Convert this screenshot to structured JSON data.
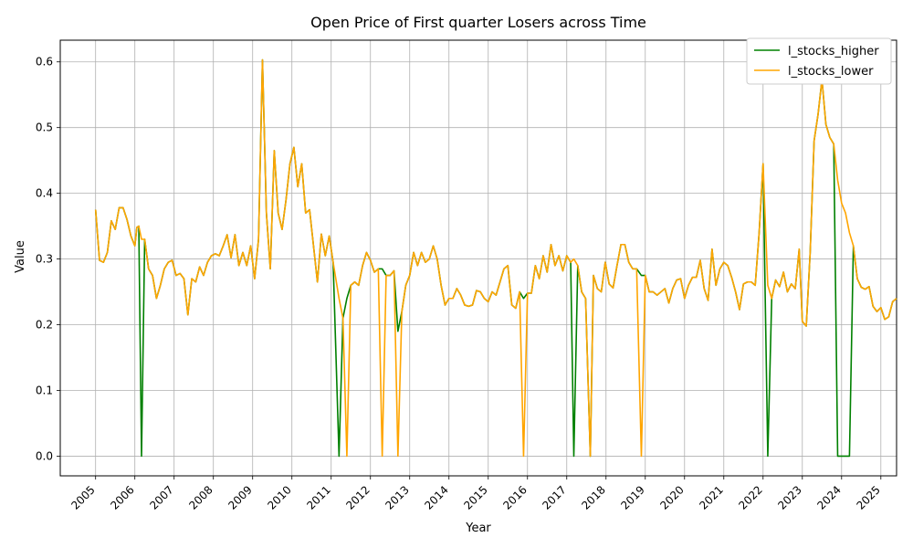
{
  "chart_data": {
    "type": "line",
    "title": "Open Price of First quarter Losers across Time",
    "xlabel": "Year",
    "ylabel": "Value",
    "xlim": [
      2004.1,
      2025.4
    ],
    "ylim": [
      -0.03,
      0.633
    ],
    "grid": true,
    "legend_position": "top-right",
    "x_ticks": [
      "2005",
      "2006",
      "2007",
      "2008",
      "2009",
      "2010",
      "2011",
      "2012",
      "2013",
      "2014",
      "2015",
      "2016",
      "2017",
      "2018",
      "2019",
      "2020",
      "2021",
      "2022",
      "2023",
      "2024",
      "2025"
    ],
    "y_ticks": [
      "0.0",
      "0.1",
      "0.2",
      "0.3",
      "0.4",
      "0.5",
      "0.6"
    ],
    "series": [
      {
        "name": "l_stocks_higher",
        "color": "#008000",
        "points": [
          [
            2005.0,
            0.375
          ],
          [
            2005.1,
            0.298
          ],
          [
            2005.2,
            0.295
          ],
          [
            2005.3,
            0.31
          ],
          [
            2005.4,
            0.358
          ],
          [
            2005.5,
            0.345
          ],
          [
            2005.6,
            0.378
          ],
          [
            2005.7,
            0.378
          ],
          [
            2005.8,
            0.36
          ],
          [
            2005.9,
            0.335
          ],
          [
            2006.0,
            0.32
          ],
          [
            2006.05,
            0.348
          ],
          [
            2006.1,
            0.35
          ],
          [
            2006.17,
            0.0
          ],
          [
            2006.25,
            0.33
          ],
          [
            2006.35,
            0.285
          ],
          [
            2006.45,
            0.275
          ],
          [
            2006.55,
            0.24
          ],
          [
            2006.65,
            0.26
          ],
          [
            2006.75,
            0.285
          ],
          [
            2006.85,
            0.295
          ],
          [
            2006.95,
            0.298
          ],
          [
            2007.05,
            0.275
          ],
          [
            2007.15,
            0.278
          ],
          [
            2007.25,
            0.27
          ],
          [
            2007.35,
            0.215
          ],
          [
            2007.45,
            0.27
          ],
          [
            2007.55,
            0.265
          ],
          [
            2007.65,
            0.288
          ],
          [
            2007.75,
            0.275
          ],
          [
            2007.85,
            0.295
          ],
          [
            2007.95,
            0.305
          ],
          [
            2008.05,
            0.308
          ],
          [
            2008.15,
            0.305
          ],
          [
            2008.25,
            0.32
          ],
          [
            2008.35,
            0.337
          ],
          [
            2008.45,
            0.302
          ],
          [
            2008.55,
            0.337
          ],
          [
            2008.65,
            0.29
          ],
          [
            2008.75,
            0.31
          ],
          [
            2008.85,
            0.29
          ],
          [
            2008.95,
            0.32
          ],
          [
            2009.05,
            0.27
          ],
          [
            2009.15,
            0.33
          ],
          [
            2009.25,
            0.603
          ],
          [
            2009.35,
            0.37
          ],
          [
            2009.45,
            0.285
          ],
          [
            2009.55,
            0.465
          ],
          [
            2009.65,
            0.37
          ],
          [
            2009.75,
            0.345
          ],
          [
            2009.85,
            0.39
          ],
          [
            2009.95,
            0.445
          ],
          [
            2010.05,
            0.47
          ],
          [
            2010.15,
            0.41
          ],
          [
            2010.25,
            0.445
          ],
          [
            2010.35,
            0.37
          ],
          [
            2010.45,
            0.375
          ],
          [
            2010.55,
            0.32
          ],
          [
            2010.65,
            0.265
          ],
          [
            2010.75,
            0.338
          ],
          [
            2010.85,
            0.305
          ],
          [
            2010.95,
            0.335
          ],
          [
            2011.05,
            0.295
          ],
          [
            2011.2,
            0.0
          ],
          [
            2011.3,
            0.21
          ],
          [
            2011.4,
            0.24
          ],
          [
            2011.5,
            0.26
          ],
          [
            2011.6,
            0.265
          ],
          [
            2011.7,
            0.26
          ],
          [
            2011.8,
            0.29
          ],
          [
            2011.9,
            0.31
          ],
          [
            2012.0,
            0.298
          ],
          [
            2012.1,
            0.28
          ],
          [
            2012.2,
            0.285
          ],
          [
            2012.3,
            0.285
          ],
          [
            2012.4,
            0.275
          ],
          [
            2012.5,
            0.275
          ],
          [
            2012.6,
            0.282
          ],
          [
            2012.7,
            0.19
          ],
          [
            2012.8,
            0.22
          ],
          [
            2012.9,
            0.26
          ],
          [
            2013.0,
            0.275
          ],
          [
            2013.1,
            0.31
          ],
          [
            2013.2,
            0.29
          ],
          [
            2013.3,
            0.31
          ],
          [
            2013.4,
            0.295
          ],
          [
            2013.5,
            0.3
          ],
          [
            2013.6,
            0.32
          ],
          [
            2013.7,
            0.3
          ],
          [
            2013.8,
            0.26
          ],
          [
            2013.9,
            0.23
          ],
          [
            2014.0,
            0.24
          ],
          [
            2014.1,
            0.24
          ],
          [
            2014.2,
            0.255
          ],
          [
            2014.3,
            0.245
          ],
          [
            2014.4,
            0.23
          ],
          [
            2014.5,
            0.228
          ],
          [
            2014.6,
            0.23
          ],
          [
            2014.7,
            0.252
          ],
          [
            2014.8,
            0.25
          ],
          [
            2014.9,
            0.24
          ],
          [
            2015.0,
            0.235
          ],
          [
            2015.1,
            0.25
          ],
          [
            2015.2,
            0.245
          ],
          [
            2015.3,
            0.265
          ],
          [
            2015.4,
            0.285
          ],
          [
            2015.5,
            0.29
          ],
          [
            2015.6,
            0.23
          ],
          [
            2015.7,
            0.225
          ],
          [
            2015.8,
            0.25
          ],
          [
            2015.9,
            0.24
          ],
          [
            2016.0,
            0.248
          ],
          [
            2016.1,
            0.248
          ],
          [
            2016.2,
            0.29
          ],
          [
            2016.3,
            0.27
          ],
          [
            2016.4,
            0.305
          ],
          [
            2016.5,
            0.28
          ],
          [
            2016.6,
            0.322
          ],
          [
            2016.7,
            0.29
          ],
          [
            2016.8,
            0.305
          ],
          [
            2016.9,
            0.282
          ],
          [
            2017.0,
            0.305
          ],
          [
            2017.1,
            0.295
          ],
          [
            2017.18,
            0.0
          ],
          [
            2017.28,
            0.29
          ],
          [
            2017.38,
            0.25
          ],
          [
            2017.48,
            0.24
          ],
          [
            2017.6,
            0.0
          ],
          [
            2017.68,
            0.275
          ],
          [
            2017.78,
            0.255
          ],
          [
            2017.88,
            0.25
          ],
          [
            2017.98,
            0.295
          ],
          [
            2018.08,
            0.262
          ],
          [
            2018.18,
            0.256
          ],
          [
            2018.28,
            0.29
          ],
          [
            2018.38,
            0.322
          ],
          [
            2018.48,
            0.322
          ],
          [
            2018.58,
            0.295
          ],
          [
            2018.68,
            0.285
          ],
          [
            2018.78,
            0.285
          ],
          [
            2018.9,
            0.275
          ],
          [
            2019.0,
            0.275
          ],
          [
            2019.1,
            0.25
          ],
          [
            2019.2,
            0.25
          ],
          [
            2019.3,
            0.245
          ],
          [
            2019.4,
            0.25
          ],
          [
            2019.5,
            0.255
          ],
          [
            2019.6,
            0.233
          ],
          [
            2019.7,
            0.255
          ],
          [
            2019.8,
            0.268
          ],
          [
            2019.9,
            0.27
          ],
          [
            2020.0,
            0.24
          ],
          [
            2020.1,
            0.26
          ],
          [
            2020.2,
            0.272
          ],
          [
            2020.3,
            0.272
          ],
          [
            2020.4,
            0.298
          ],
          [
            2020.5,
            0.255
          ],
          [
            2020.6,
            0.237
          ],
          [
            2020.7,
            0.315
          ],
          [
            2020.8,
            0.26
          ],
          [
            2020.9,
            0.285
          ],
          [
            2021.0,
            0.295
          ],
          [
            2021.1,
            0.29
          ],
          [
            2021.2,
            0.272
          ],
          [
            2021.3,
            0.25
          ],
          [
            2021.4,
            0.223
          ],
          [
            2021.5,
            0.262
          ],
          [
            2021.6,
            0.265
          ],
          [
            2021.7,
            0.265
          ],
          [
            2021.8,
            0.26
          ],
          [
            2021.9,
            0.34
          ],
          [
            2022.0,
            0.445
          ],
          [
            2022.12,
            0.0
          ],
          [
            2022.22,
            0.24
          ],
          [
            2022.32,
            0.268
          ],
          [
            2022.42,
            0.258
          ],
          [
            2022.52,
            0.28
          ],
          [
            2022.62,
            0.25
          ],
          [
            2022.72,
            0.262
          ],
          [
            2022.82,
            0.255
          ],
          [
            2022.92,
            0.315
          ],
          [
            2023.0,
            0.205
          ],
          [
            2023.1,
            0.198
          ],
          [
            2023.2,
            0.31
          ],
          [
            2023.3,
            0.48
          ],
          [
            2023.4,
            0.52
          ],
          [
            2023.5,
            0.573
          ],
          [
            2023.6,
            0.505
          ],
          [
            2023.7,
            0.485
          ],
          [
            2023.8,
            0.475
          ],
          [
            2023.9,
            0.0
          ],
          [
            2024.0,
            0.0
          ],
          [
            2024.1,
            0.0
          ],
          [
            2024.2,
            0.0
          ],
          [
            2024.3,
            0.32
          ],
          [
            2024.4,
            0.27
          ],
          [
            2024.5,
            0.257
          ],
          [
            2024.6,
            0.254
          ],
          [
            2024.7,
            0.258
          ],
          [
            2024.8,
            0.228
          ],
          [
            2024.9,
            0.22
          ],
          [
            2025.0,
            0.226
          ],
          [
            2025.1,
            0.208
          ],
          [
            2025.2,
            0.212
          ],
          [
            2025.3,
            0.235
          ],
          [
            2025.4,
            0.24
          ]
        ]
      },
      {
        "name": "l_stocks_lower",
        "color": "#FFA500",
        "points": [
          [
            2005.0,
            0.375
          ],
          [
            2005.1,
            0.298
          ],
          [
            2005.2,
            0.295
          ],
          [
            2005.3,
            0.31
          ],
          [
            2005.4,
            0.358
          ],
          [
            2005.5,
            0.345
          ],
          [
            2005.6,
            0.378
          ],
          [
            2005.7,
            0.378
          ],
          [
            2005.8,
            0.36
          ],
          [
            2005.9,
            0.335
          ],
          [
            2006.0,
            0.32
          ],
          [
            2006.05,
            0.348
          ],
          [
            2006.1,
            0.34
          ],
          [
            2006.17,
            0.33
          ],
          [
            2006.25,
            0.33
          ],
          [
            2006.35,
            0.285
          ],
          [
            2006.45,
            0.275
          ],
          [
            2006.55,
            0.24
          ],
          [
            2006.65,
            0.26
          ],
          [
            2006.75,
            0.285
          ],
          [
            2006.85,
            0.295
          ],
          [
            2006.95,
            0.298
          ]
        ]
      }
    ],
    "lower_series_full": [
      [
        2005.0,
        0.375
      ],
      [
        2005.05,
        0.3
      ],
      [
        2005.1,
        0.295
      ],
      [
        2005.15,
        0.31
      ],
      [
        2005.22,
        0.358
      ],
      [
        2005.28,
        0.345
      ],
      [
        2005.35,
        0.376
      ],
      [
        2005.42,
        0.378
      ],
      [
        2005.5,
        0.36
      ],
      [
        2005.58,
        0.335
      ],
      [
        2005.65,
        0.32
      ],
      [
        2005.7,
        0.348
      ],
      [
        2005.78,
        0.34
      ],
      [
        2005.85,
        0.33
      ],
      [
        2005.95,
        0.285
      ],
      [
        2006.05,
        0.275
      ],
      [
        2006.12,
        0.24
      ],
      [
        2006.2,
        0.262
      ],
      [
        2006.28,
        0.285
      ],
      [
        2006.36,
        0.293
      ],
      [
        2006.45,
        0.298
      ],
      [
        2006.52,
        0.275
      ],
      [
        2006.6,
        0.278
      ],
      [
        2006.68,
        0.27
      ],
      [
        2006.74,
        0.215
      ],
      [
        2006.8,
        0.265
      ],
      [
        2006.88,
        0.265
      ],
      [
        2006.95,
        0.288
      ],
      [
        2007.02,
        0.275
      ],
      [
        2007.1,
        0.295
      ],
      [
        2007.2,
        0.305
      ],
      [
        2007.3,
        0.305
      ],
      [
        2007.4,
        0.322
      ],
      [
        2007.46,
        0.337
      ],
      [
        2007.52,
        0.302
      ],
      [
        2007.58,
        0.337
      ],
      [
        2007.64,
        0.29
      ],
      [
        2007.7,
        0.312
      ],
      [
        2007.78,
        0.29
      ],
      [
        2007.85,
        0.32
      ],
      [
        2007.9,
        0.27
      ],
      [
        2007.98,
        0.33
      ],
      [
        2008.08,
        0.603
      ],
      [
        2008.16,
        0.37
      ],
      [
        2008.22,
        0.285
      ],
      [
        2008.3,
        0.465
      ],
      [
        2008.36,
        0.37
      ],
      [
        2008.43,
        0.343
      ],
      [
        2008.5,
        0.39
      ],
      [
        2008.57,
        0.445
      ],
      [
        2008.65,
        0.473
      ],
      [
        2008.72,
        0.405
      ],
      [
        2008.78,
        0.447
      ],
      [
        2008.84,
        0.37
      ],
      [
        2008.9,
        0.375
      ],
      [
        2008.96,
        0.335
      ],
      [
        2009.02,
        0.265
      ],
      [
        2009.08,
        0.338
      ],
      [
        2009.15,
        0.305
      ],
      [
        2009.22,
        0.335
      ],
      [
        2009.3,
        0.295
      ],
      [
        2009.38,
        0.24
      ]
    ]
  }
}
